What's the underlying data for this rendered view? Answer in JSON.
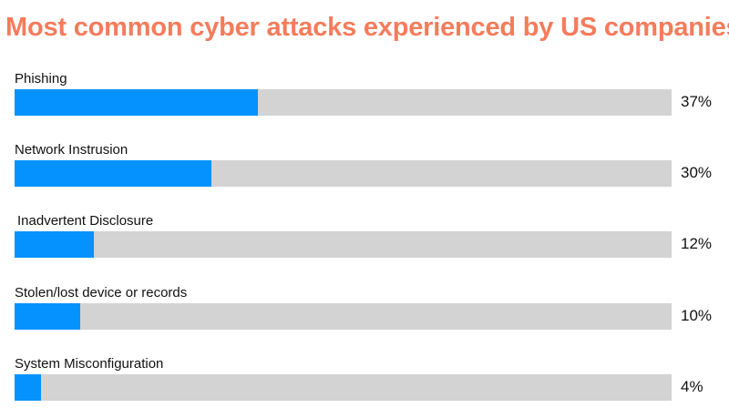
{
  "colors": {
    "title": "#f47c5c",
    "bar_fill": "#0592ff",
    "bar_track": "#d3d3d3",
    "text": "#111111"
  },
  "chart_data": {
    "type": "bar",
    "orientation": "horizontal",
    "title": "Most common cyber attacks experienced by US companies",
    "categories": [
      "Phishing",
      "Network Instrusion",
      "Inadvertent Disclosure",
      "Stolen/lost device or records",
      "System Misconfiguration"
    ],
    "values": [
      37,
      30,
      12,
      10,
      4
    ],
    "value_labels": [
      "37%",
      "30%",
      "12%",
      "10%",
      "4%"
    ],
    "xlim": [
      0,
      100
    ],
    "grid": false,
    "legend": "none"
  }
}
